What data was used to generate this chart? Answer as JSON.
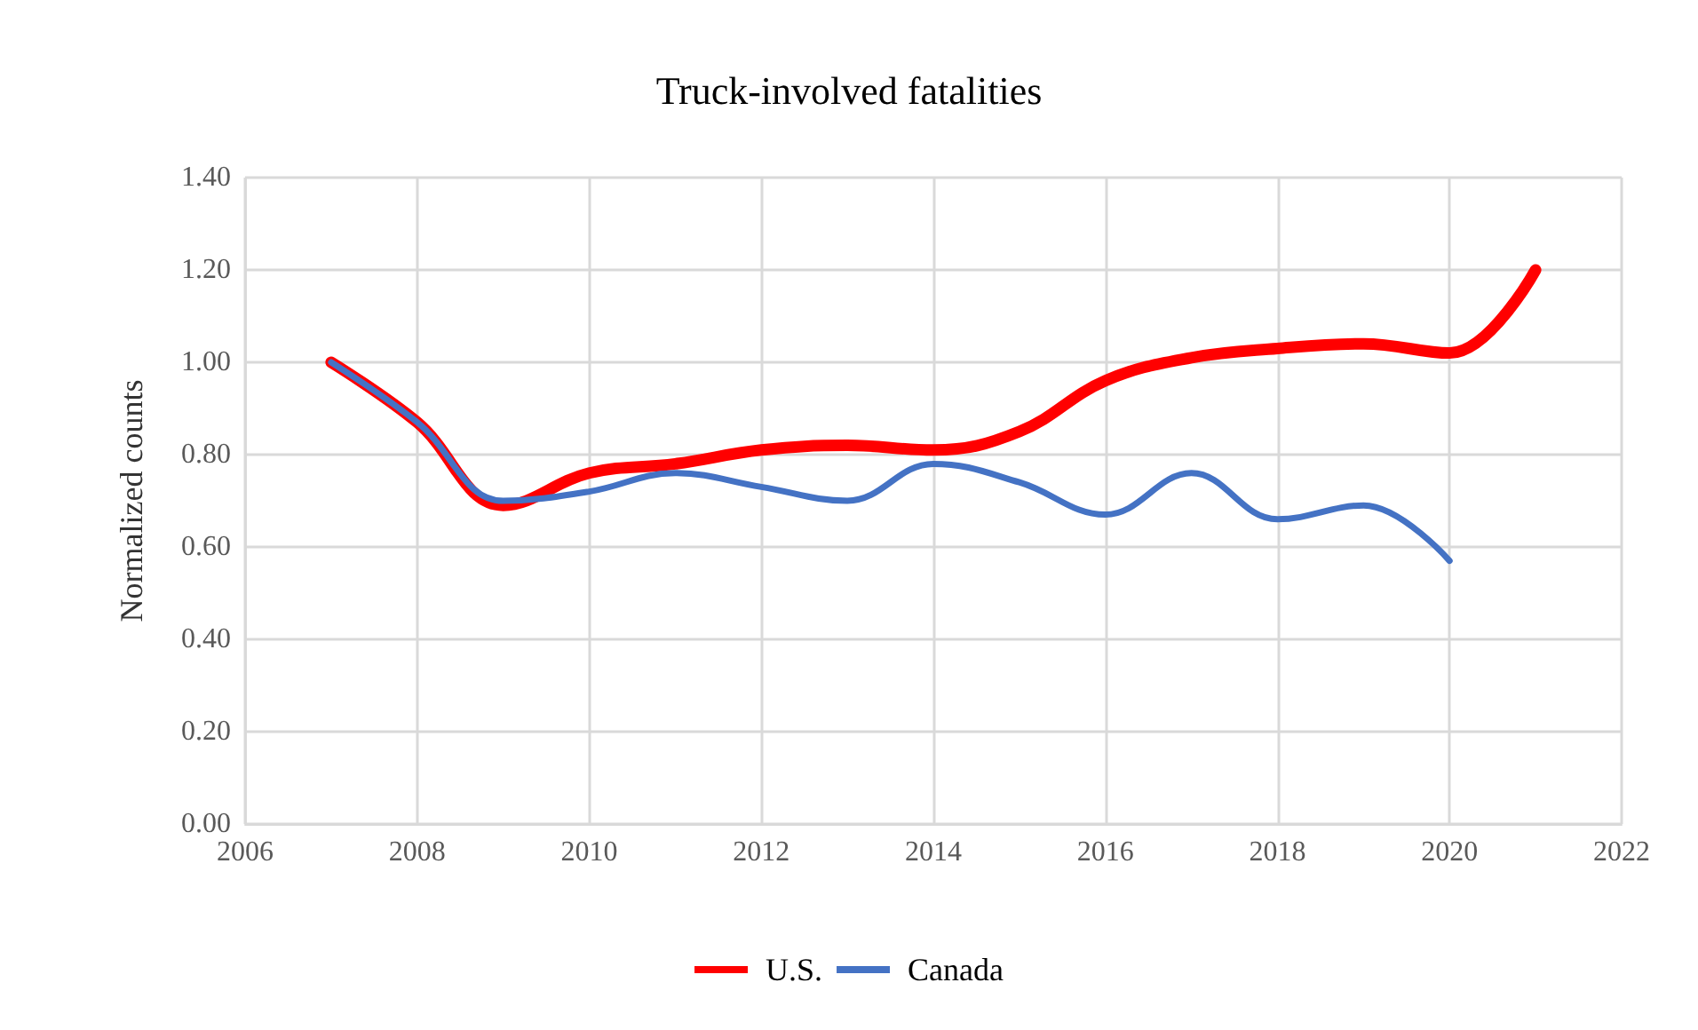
{
  "chart_data": {
    "type": "line",
    "title": "Truck-involved fatalities",
    "ylabel": "Normalized counts",
    "x": [
      2007,
      2008,
      2009,
      2010,
      2011,
      2012,
      2013,
      2014,
      2015,
      2016,
      2017,
      2018,
      2019,
      2020,
      2021
    ],
    "series": [
      {
        "name": "U.S.",
        "color": "#ff0000",
        "values": [
          1.0,
          0.87,
          0.69,
          0.76,
          0.78,
          0.81,
          0.82,
          0.81,
          0.85,
          0.96,
          1.01,
          1.03,
          1.04,
          1.02,
          1.2
        ]
      },
      {
        "name": "Canada",
        "color": "#4472c4",
        "values": [
          1.0,
          0.87,
          0.7,
          0.72,
          0.76,
          0.73,
          0.7,
          0.78,
          0.74,
          0.67,
          0.76,
          0.66,
          0.69,
          0.57,
          null
        ]
      }
    ],
    "xlim": [
      2006,
      2022
    ],
    "xticks": [
      2006,
      2008,
      2010,
      2012,
      2014,
      2016,
      2018,
      2020,
      2022
    ],
    "ylim": [
      0,
      1.4
    ],
    "yticks": [
      {
        "value": 0,
        "label": "0.00"
      },
      {
        "value": 0.2,
        "label": "0.20"
      },
      {
        "value": 0.4,
        "label": "0.40"
      },
      {
        "value": 0.6,
        "label": "0.60"
      },
      {
        "value": 0.8,
        "label": "0.80"
      },
      {
        "value": 1.0,
        "label": "1.00"
      },
      {
        "value": 1.2,
        "label": "1.20"
      },
      {
        "value": 1.4,
        "label": "1.40"
      }
    ],
    "grid": true,
    "legend": "bottom",
    "marker": "none",
    "line_style": "solid"
  }
}
